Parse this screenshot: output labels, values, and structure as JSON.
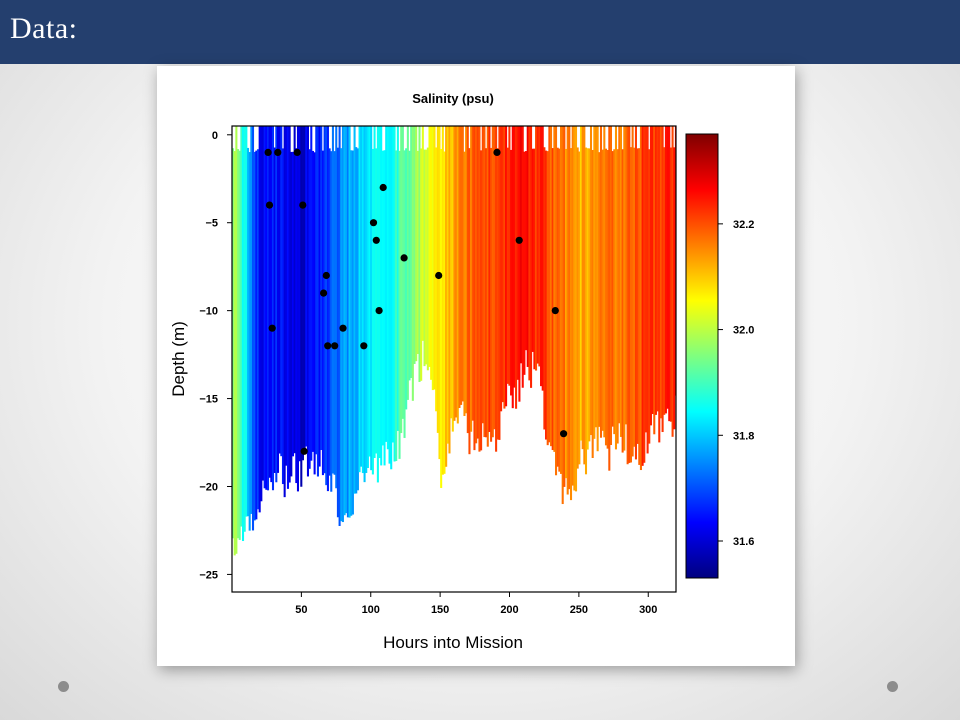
{
  "slide": {
    "title": "Data:"
  },
  "colors": {
    "header": "#243f6e",
    "points": "#000000"
  },
  "icons": {
    "left": "nav-dot",
    "right": "nav-dot"
  },
  "chart_data": {
    "type": "heatmap",
    "title": "Salinity (psu)",
    "xlabel": "Hours into Mission",
    "ylabel": "Depth (m)",
    "xlim": [
      0,
      320
    ],
    "ylim": [
      -26,
      0.5
    ],
    "xticks": [
      "50",
      "100",
      "150",
      "200",
      "250",
      "300"
    ],
    "xtick_values": [
      50,
      100,
      150,
      200,
      250,
      300
    ],
    "yticks": [
      "0",
      "−5",
      "−10",
      "−15",
      "−20",
      "−25"
    ],
    "ytick_values": [
      0,
      -5,
      -10,
      -15,
      -20,
      -25
    ],
    "colorbar": {
      "range": [
        31.53,
        32.37
      ],
      "ticks": [
        "31.6",
        "31.8",
        "32.0",
        "32.2"
      ],
      "tick_values": [
        31.6,
        31.8,
        32.0,
        32.2
      ],
      "colormap": [
        "#00007f",
        "#0000ff",
        "#007fff",
        "#00ffff",
        "#7fff7f",
        "#ffff00",
        "#ff7f00",
        "#ff0000",
        "#7f0000"
      ]
    },
    "profile_salinity_by_hour": {
      "x": [
        2,
        20,
        30,
        40,
        50,
        60,
        70,
        80,
        90,
        100,
        110,
        120,
        130,
        140,
        150,
        160,
        170,
        180,
        190,
        200,
        210,
        220,
        230,
        240,
        250,
        260,
        270,
        280,
        290,
        300,
        310,
        320
      ],
      "salinity": [
        31.98,
        31.62,
        31.65,
        31.63,
        31.6,
        31.64,
        31.7,
        31.75,
        31.8,
        31.82,
        31.85,
        31.9,
        31.94,
        32.03,
        32.08,
        32.13,
        32.18,
        32.2,
        32.22,
        32.24,
        32.25,
        32.23,
        32.2,
        32.15,
        32.12,
        32.14,
        32.16,
        32.18,
        32.2,
        32.22,
        32.23,
        32.24
      ]
    },
    "profile_max_depth_by_hour": {
      "x": [
        2,
        20,
        30,
        40,
        50,
        60,
        70,
        80,
        90,
        100,
        110,
        120,
        130,
        140,
        150,
        160,
        170,
        180,
        190,
        200,
        210,
        220,
        230,
        240,
        250,
        260,
        270,
        280,
        290,
        300,
        310,
        320
      ],
      "depth": [
        -24.5,
        -21.5,
        -19.5,
        -20,
        -19.5,
        -19,
        -20.5,
        -22,
        -20.5,
        -19.5,
        -19,
        -18,
        -14.5,
        -12.5,
        -19.5,
        -16,
        -17.5,
        -18,
        -17.5,
        -15.5,
        -14,
        -13.5,
        -19.5,
        -21,
        -19,
        -18,
        -18.5,
        -17.5,
        -19.5,
        -17.5,
        -16.5,
        -16.5
      ]
    },
    "sample_points": {
      "x": [
        26,
        33,
        47,
        27,
        51,
        29,
        52,
        68,
        66,
        69,
        74,
        80,
        95,
        102,
        104,
        106,
        109,
        124,
        149,
        191,
        207,
        233,
        239
      ],
      "y": [
        -1,
        -1,
        -1,
        -4,
        -4,
        -11,
        -18,
        -8,
        -9,
        -12,
        -12,
        -11,
        -12,
        -5,
        -6,
        -10,
        -3,
        -7,
        -8,
        -1,
        -6,
        -10,
        -17
      ]
    }
  }
}
